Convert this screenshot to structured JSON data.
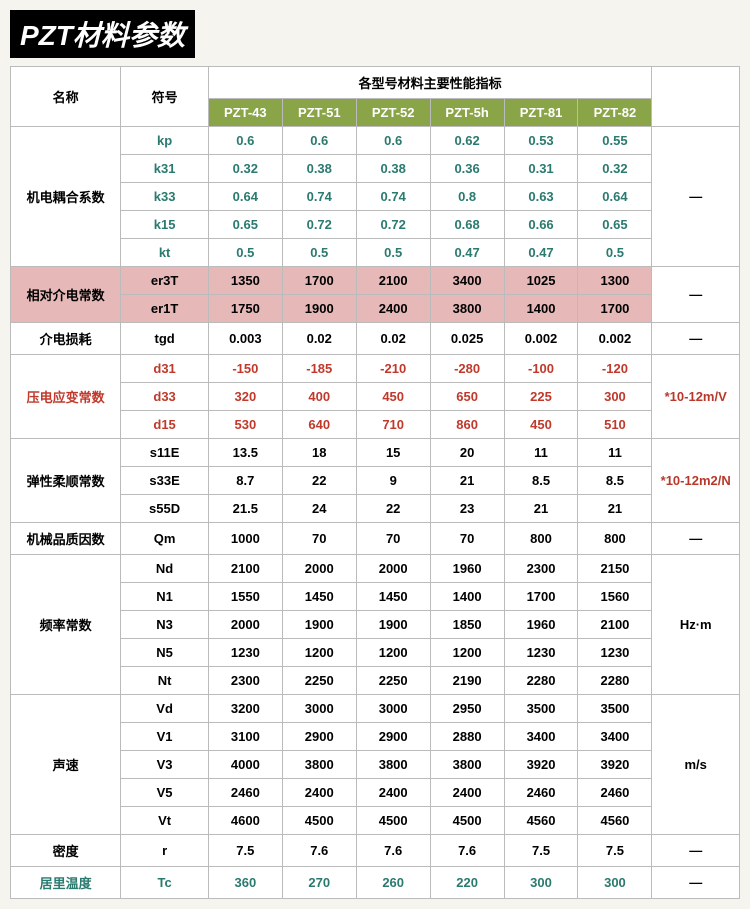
{
  "title": "PZT材料参数",
  "headers": {
    "name": "名称",
    "symbol": "符号",
    "group": "各型号材料主要性能指标",
    "cols": [
      "PZT-43",
      "PZT-51",
      "PZT-52",
      "PZT-5h",
      "PZT-81",
      "PZT-82"
    ]
  },
  "sections": [
    {
      "name": "机电耦合系数",
      "name_class": "",
      "unit": "—",
      "unit_class": "",
      "rows": [
        {
          "sym": "kp",
          "sym_class": "teal",
          "v": [
            "0.6",
            "0.6",
            "0.6",
            "0.62",
            "0.53",
            "0.55"
          ],
          "v_class": "teal"
        },
        {
          "sym": "k31",
          "sym_class": "teal",
          "v": [
            "0.32",
            "0.38",
            "0.38",
            "0.36",
            "0.31",
            "0.32"
          ],
          "v_class": "teal"
        },
        {
          "sym": "k33",
          "sym_class": "teal",
          "v": [
            "0.64",
            "0.74",
            "0.74",
            "0.8",
            "0.63",
            "0.64"
          ],
          "v_class": "teal"
        },
        {
          "sym": "k15",
          "sym_class": "teal",
          "v": [
            "0.65",
            "0.72",
            "0.72",
            "0.68",
            "0.66",
            "0.65"
          ],
          "v_class": "teal"
        },
        {
          "sym": "kt",
          "sym_class": "teal",
          "v": [
            "0.5",
            "0.5",
            "0.5",
            "0.47",
            "0.47",
            "0.5"
          ],
          "v_class": "teal"
        }
      ]
    },
    {
      "name": "相对介电常数",
      "name_class": "",
      "unit": "—",
      "unit_class": "",
      "row_class": "row-pink",
      "rows": [
        {
          "sym": "er3T",
          "sym_class": "",
          "v": [
            "1350",
            "1700",
            "2100",
            "3400",
            "1025",
            "1300"
          ],
          "v_class": ""
        },
        {
          "sym": "er1T",
          "sym_class": "",
          "v": [
            "1750",
            "1900",
            "2400",
            "3800",
            "1400",
            "1700"
          ],
          "v_class": ""
        }
      ]
    },
    {
      "name": "介电损耗",
      "name_class": "",
      "unit": "—",
      "unit_class": "",
      "rows": [
        {
          "sym": "tgd",
          "sym_class": "",
          "v": [
            "0.003",
            "0.02",
            "0.02",
            "0.025",
            "0.002",
            "0.002"
          ],
          "v_class": ""
        }
      ]
    },
    {
      "name": "压电应变常数",
      "name_class": "red",
      "unit": "*10-12m/V",
      "unit_class": "unit",
      "rows": [
        {
          "sym": "d31",
          "sym_class": "red",
          "v": [
            "-150",
            "-185",
            "-210",
            "-280",
            "-100",
            "-120"
          ],
          "v_class": "red"
        },
        {
          "sym": "d33",
          "sym_class": "red",
          "v": [
            "320",
            "400",
            "450",
            "650",
            "225",
            "300"
          ],
          "v_class": "red"
        },
        {
          "sym": "d15",
          "sym_class": "red",
          "v": [
            "530",
            "640",
            "710",
            "860",
            "450",
            "510"
          ],
          "v_class": "red"
        }
      ]
    },
    {
      "name": "弹性柔顺常数",
      "name_class": "",
      "unit": "*10-12m2/N",
      "unit_class": "unit",
      "rows": [
        {
          "sym": "s11E",
          "sym_class": "",
          "v": [
            "13.5",
            "18",
            "15",
            "20",
            "11",
            "11"
          ],
          "v_class": ""
        },
        {
          "sym": "s33E",
          "sym_class": "",
          "v": [
            "8.7",
            "22",
            "9",
            "21",
            "8.5",
            "8.5"
          ],
          "v_class": ""
        },
        {
          "sym": "s55D",
          "sym_class": "",
          "v": [
            "21.5",
            "24",
            "22",
            "23",
            "21",
            "21"
          ],
          "v_class": ""
        }
      ]
    },
    {
      "name": "机械品质因数",
      "name_class": "",
      "unit": "—",
      "unit_class": "",
      "rows": [
        {
          "sym": "Qm",
          "sym_class": "",
          "v": [
            "1000",
            "70",
            "70",
            "70",
            "800",
            "800"
          ],
          "v_class": ""
        }
      ]
    },
    {
      "name": "频率常数",
      "name_class": "",
      "unit": "Hz·m",
      "unit_class": "",
      "rows": [
        {
          "sym": "Nd",
          "sym_class": "",
          "v": [
            "2100",
            "2000",
            "2000",
            "1960",
            "2300",
            "2150"
          ],
          "v_class": ""
        },
        {
          "sym": "N1",
          "sym_class": "",
          "v": [
            "1550",
            "1450",
            "1450",
            "1400",
            "1700",
            "1560"
          ],
          "v_class": ""
        },
        {
          "sym": "N3",
          "sym_class": "",
          "v": [
            "2000",
            "1900",
            "1900",
            "1850",
            "1960",
            "2100"
          ],
          "v_class": ""
        },
        {
          "sym": "N5",
          "sym_class": "",
          "v": [
            "1230",
            "1200",
            "1200",
            "1200",
            "1230",
            "1230"
          ],
          "v_class": ""
        },
        {
          "sym": "Nt",
          "sym_class": "",
          "v": [
            "2300",
            "2250",
            "2250",
            "2190",
            "2280",
            "2280"
          ],
          "v_class": ""
        }
      ]
    },
    {
      "name": "声速",
      "name_class": "",
      "unit": "m/s",
      "unit_class": "",
      "rows": [
        {
          "sym": "Vd",
          "sym_class": "",
          "v": [
            "3200",
            "3000",
            "3000",
            "2950",
            "3500",
            "3500"
          ],
          "v_class": ""
        },
        {
          "sym": "V1",
          "sym_class": "",
          "v": [
            "3100",
            "2900",
            "2900",
            "2880",
            "3400",
            "3400"
          ],
          "v_class": ""
        },
        {
          "sym": "V3",
          "sym_class": "",
          "v": [
            "4000",
            "3800",
            "3800",
            "3800",
            "3920",
            "3920"
          ],
          "v_class": ""
        },
        {
          "sym": "V5",
          "sym_class": "",
          "v": [
            "2460",
            "2400",
            "2400",
            "2400",
            "2460",
            "2460"
          ],
          "v_class": ""
        },
        {
          "sym": "Vt",
          "sym_class": "",
          "v": [
            "4600",
            "4500",
            "4500",
            "4500",
            "4560",
            "4560"
          ],
          "v_class": ""
        }
      ]
    },
    {
      "name": "密度",
      "name_class": "",
      "unit": "—",
      "unit_class": "",
      "rows": [
        {
          "sym": "r",
          "sym_class": "",
          "v": [
            "7.5",
            "7.6",
            "7.6",
            "7.6",
            "7.5",
            "7.5"
          ],
          "v_class": ""
        }
      ]
    },
    {
      "name": "居里温度",
      "name_class": "teal",
      "unit": "—",
      "unit_class": "",
      "rows": [
        {
          "sym": "Tc",
          "sym_class": "teal",
          "v": [
            "360",
            "270",
            "260",
            "220",
            "300",
            "300"
          ],
          "v_class": "teal"
        }
      ]
    }
  ]
}
